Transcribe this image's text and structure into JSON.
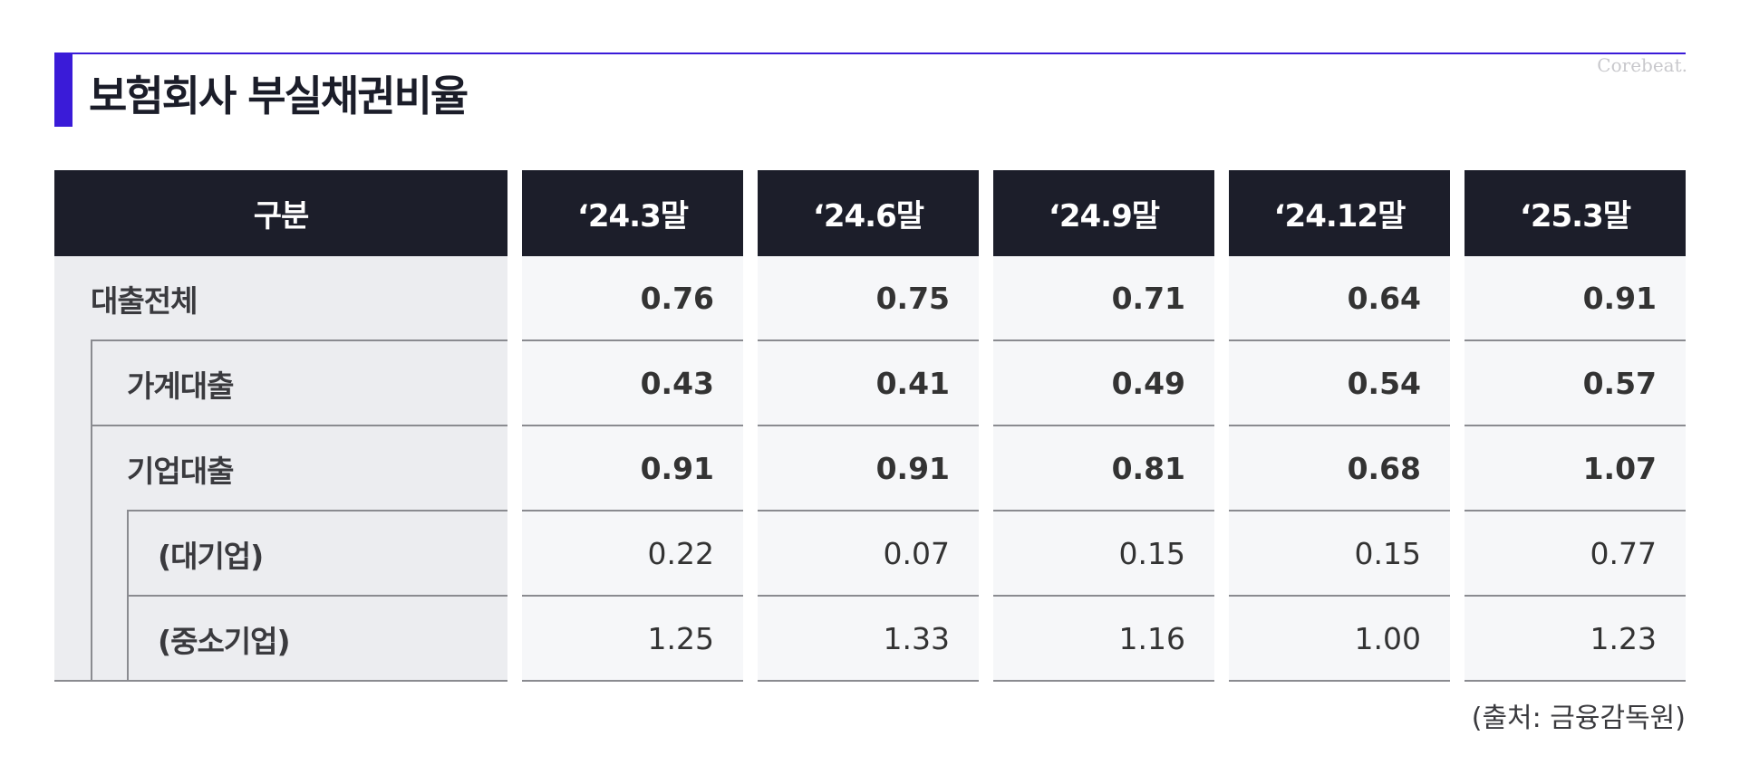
{
  "title": "보험회사 부실채권비율",
  "brand": "Corebeat.",
  "table": {
    "columns": [
      "구분",
      "‘24.3말",
      "‘24.6말",
      "‘24.9말",
      "‘24.12말",
      "‘25.3말"
    ],
    "rows": [
      {
        "label": "대출전체",
        "values": [
          "0.76",
          "0.75",
          "0.71",
          "0.64",
          "0.91"
        ],
        "bold": true
      },
      {
        "label": "가계대출",
        "values": [
          "0.43",
          "0.41",
          "0.49",
          "0.54",
          "0.57"
        ],
        "bold": true
      },
      {
        "label": "기업대출",
        "values": [
          "0.91",
          "0.91",
          "0.81",
          "0.68",
          "1.07"
        ],
        "bold": true
      },
      {
        "label": "(대기업)",
        "values": [
          "0.22",
          "0.07",
          "0.15",
          "0.15",
          "0.77"
        ],
        "bold": false
      },
      {
        "label": "(중소기업)",
        "values": [
          "1.25",
          "1.33",
          "1.16",
          "1.00",
          "1.23"
        ],
        "bold": false
      }
    ]
  },
  "source": "(출처: 금융감독원)",
  "colors": {
    "accent": "#3A1BD8",
    "header_bg": "#1c1e2a"
  }
}
